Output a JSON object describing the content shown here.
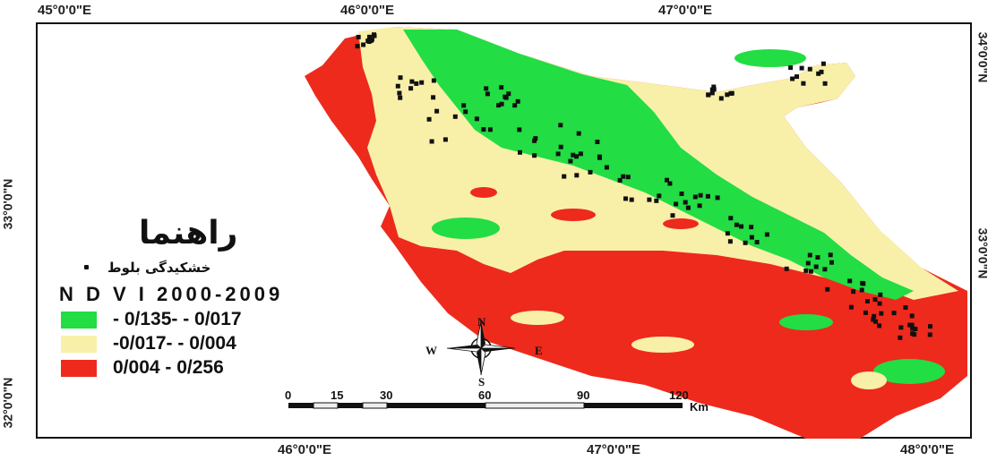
{
  "map": {
    "top_lon_labels": [
      "45°0'0\"E",
      "46°0'0\"E",
      "47°0'0\"E"
    ],
    "bottom_lon_labels": [
      "46°0'0\"E",
      "47°0'0\"E",
      "48°0'0\"E"
    ],
    "left_lat_labels": [
      "33°0'0\"N",
      "32°0'0\"N"
    ],
    "right_lat_labels": [
      "34°0'0\"N",
      "33°0'0\"N"
    ]
  },
  "legend": {
    "title": "راهنما",
    "point_label": "خشکیدگی بلوط",
    "ndvi_title": "N D V I 2000-2009",
    "classes": [
      {
        "label": "- 0/135- - 0/017",
        "color": "#22dd44"
      },
      {
        "label": "-0/017- - 0/004",
        "color": "#f8f0a8"
      },
      {
        "label": "0/004 - 0/256",
        "color": "#ee2a1c"
      }
    ]
  },
  "compass": {
    "n": "N",
    "s": "S",
    "e": "E",
    "w": "W"
  },
  "scale_bar": {
    "ticks": [
      "0",
      "15",
      "30",
      "60",
      "90",
      "120"
    ],
    "unit": "Km"
  }
}
